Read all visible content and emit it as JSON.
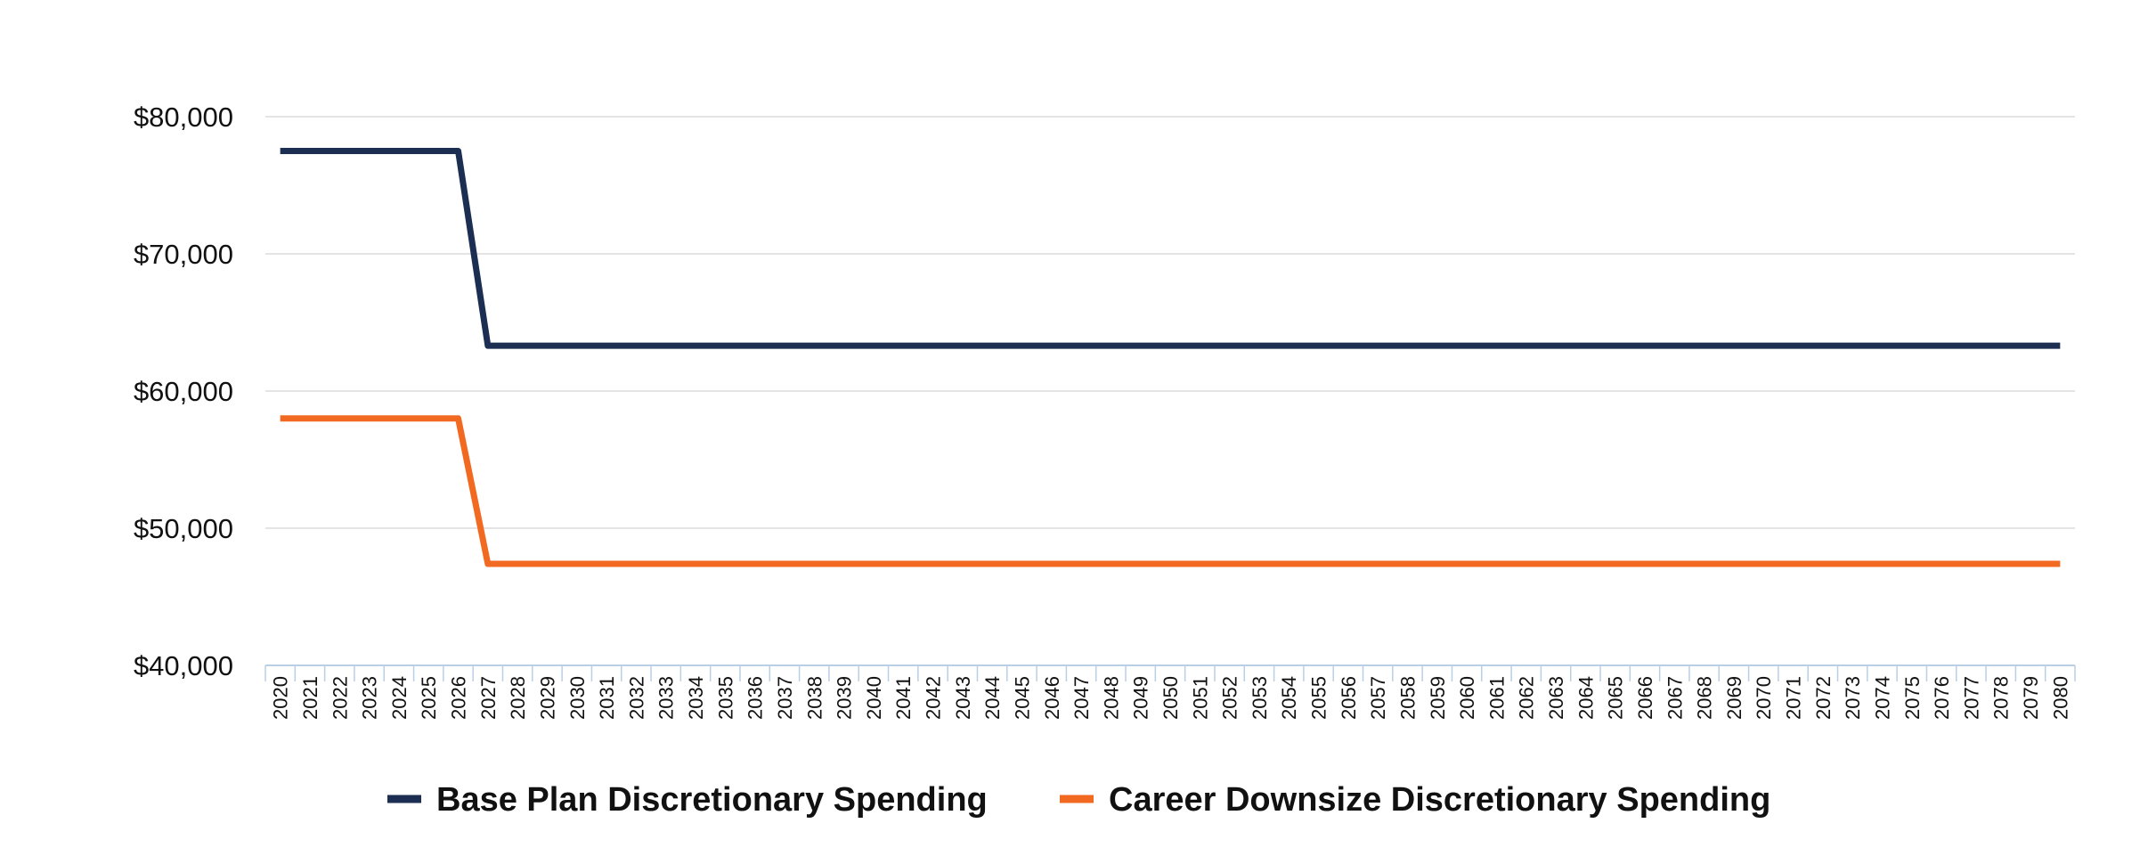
{
  "chart_data": {
    "type": "line",
    "title": "",
    "xlabel": "",
    "ylabel": "",
    "x": [
      2020,
      2021,
      2022,
      2023,
      2024,
      2025,
      2026,
      2027,
      2028,
      2029,
      2030,
      2031,
      2032,
      2033,
      2034,
      2035,
      2036,
      2037,
      2038,
      2039,
      2040,
      2041,
      2042,
      2043,
      2044,
      2045,
      2046,
      2047,
      2048,
      2049,
      2050,
      2051,
      2052,
      2053,
      2054,
      2055,
      2056,
      2057,
      2058,
      2059,
      2060,
      2061,
      2062,
      2063,
      2064,
      2065,
      2066,
      2067,
      2068,
      2069,
      2070,
      2071,
      2072,
      2073,
      2074,
      2075,
      2076,
      2077,
      2078,
      2079,
      2080
    ],
    "ylim": [
      40000,
      80000
    ],
    "yticks": [
      {
        "value": 40000,
        "label": "$40,000"
      },
      {
        "value": 50000,
        "label": "$50,000"
      },
      {
        "value": 60000,
        "label": "$60,000"
      },
      {
        "value": 70000,
        "label": "$70,000"
      },
      {
        "value": 80000,
        "label": "$80,000"
      }
    ],
    "grid": true,
    "legend_position": "bottom",
    "series": [
      {
        "name": "Base Plan Discretionary Spending",
        "color": "#1c2f52",
        "values": [
          77500,
          77500,
          77500,
          77500,
          77500,
          77500,
          77500,
          63300,
          63300,
          63300,
          63300,
          63300,
          63300,
          63300,
          63300,
          63300,
          63300,
          63300,
          63300,
          63300,
          63300,
          63300,
          63300,
          63300,
          63300,
          63300,
          63300,
          63300,
          63300,
          63300,
          63300,
          63300,
          63300,
          63300,
          63300,
          63300,
          63300,
          63300,
          63300,
          63300,
          63300,
          63300,
          63300,
          63300,
          63300,
          63300,
          63300,
          63300,
          63300,
          63300,
          63300,
          63300,
          63300,
          63300,
          63300,
          63300,
          63300,
          63300,
          63300,
          63300,
          63300
        ]
      },
      {
        "name": "Career Downsize Discretionary Spending",
        "color": "#f26a21",
        "values": [
          58000,
          58000,
          58000,
          58000,
          58000,
          58000,
          58000,
          47400,
          47400,
          47400,
          47400,
          47400,
          47400,
          47400,
          47400,
          47400,
          47400,
          47400,
          47400,
          47400,
          47400,
          47400,
          47400,
          47400,
          47400,
          47400,
          47400,
          47400,
          47400,
          47400,
          47400,
          47400,
          47400,
          47400,
          47400,
          47400,
          47400,
          47400,
          47400,
          47400,
          47400,
          47400,
          47400,
          47400,
          47400,
          47400,
          47400,
          47400,
          47400,
          47400,
          47400,
          47400,
          47400,
          47400,
          47400,
          47400,
          47400,
          47400,
          47400,
          47400,
          47400
        ]
      }
    ]
  }
}
